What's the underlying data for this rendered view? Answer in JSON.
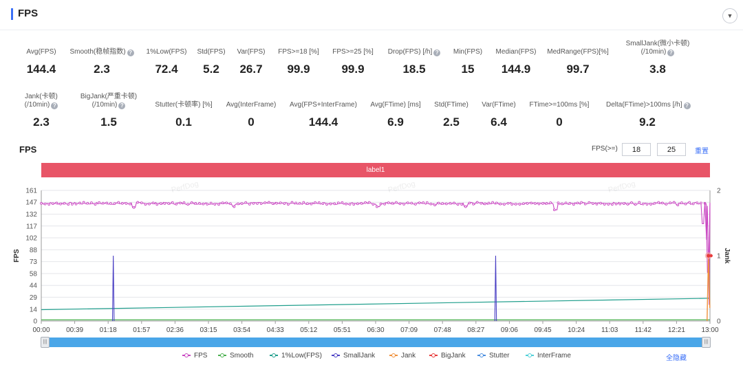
{
  "header": {
    "title": "FPS",
    "collapse_icon": "chevron-down-icon"
  },
  "metrics_row1": [
    {
      "label": "Avg(FPS)",
      "value": "144.4",
      "help": false
    },
    {
      "label": "Smooth(稳帧指数)",
      "value": "2.3",
      "help": true
    },
    {
      "label": "1%Low(FPS)",
      "value": "72.4",
      "help": false
    },
    {
      "label": "Std(FPS)",
      "value": "5.2",
      "help": false
    },
    {
      "label": "Var(FPS)",
      "value": "26.7",
      "help": false
    },
    {
      "label": "FPS>=18 [%]",
      "value": "99.9",
      "help": false
    },
    {
      "label": "FPS>=25 [%]",
      "value": "99.9",
      "help": false
    },
    {
      "label": "Drop(FPS) [/h]",
      "value": "18.5",
      "help": true
    },
    {
      "label": "Min(FPS)",
      "value": "15",
      "help": false
    },
    {
      "label": "Median(FPS)",
      "value": "144.9",
      "help": false
    },
    {
      "label": "MedRange(FPS)[%]",
      "value": "99.7",
      "help": false
    },
    {
      "label": "SmallJank(微小卡顿)",
      "label2": "(/10min)",
      "value": "3.8",
      "help": true
    }
  ],
  "metrics_row2": [
    {
      "label": "Jank(卡顿)",
      "label2": "(/10min)",
      "value": "2.3",
      "help": true
    },
    {
      "label": "BigJank(严重卡顿)",
      "label2": "(/10min)",
      "value": "1.5",
      "help": true
    },
    {
      "label": "Stutter(卡顿率) [%]",
      "value": "0.1",
      "help": false
    },
    {
      "label": "Avg(InterFrame)",
      "value": "0",
      "help": false
    },
    {
      "label": "Avg(FPS+InterFrame)",
      "value": "144.4",
      "help": false
    },
    {
      "label": "Avg(FTime) [ms]",
      "value": "6.9",
      "help": false
    },
    {
      "label": "Std(FTime)",
      "value": "2.5",
      "help": false
    },
    {
      "label": "Var(FTime)",
      "value": "6.4",
      "help": false
    },
    {
      "label": "FTime>=100ms [%]",
      "value": "0",
      "help": false
    },
    {
      "label": "Delta(FTime)>100ms [/h]",
      "value": "9.2",
      "help": true
    }
  ],
  "chart_section": {
    "title": "FPS",
    "threshold_label": "FPS(>=)",
    "threshold_1": "18",
    "threshold_2": "25",
    "reset_label": "重置",
    "label_band": "label1",
    "watermark": "PerfDog",
    "hide_all_label": "全隐藏"
  },
  "chart_data": {
    "type": "line",
    "ylabel": "FPS",
    "y2label": "Jank",
    "yticks": [
      "0",
      "14",
      "29",
      "44",
      "58",
      "73",
      "88",
      "102",
      "117",
      "132",
      "147",
      "161"
    ],
    "y2ticks": [
      "0",
      "1",
      "2"
    ],
    "ylim": [
      0,
      161
    ],
    "y2lim": [
      0,
      2
    ],
    "xticks": [
      "00:00",
      "00:39",
      "01:18",
      "01:57",
      "02:36",
      "03:15",
      "03:54",
      "04:33",
      "05:12",
      "05:51",
      "06:30",
      "07:09",
      "07:48",
      "08:27",
      "09:06",
      "09:45",
      "10:24",
      "11:03",
      "11:42",
      "12:21",
      "13:00"
    ],
    "x_seconds_max": 780,
    "grid": true,
    "legend": "bottom",
    "series": [
      {
        "name": "FPS",
        "color": "#c946c2",
        "baseline": 145,
        "dips": [
          [
            108,
            140
          ],
          [
            224,
            141
          ],
          [
            393,
            141
          ],
          [
            460,
            143
          ],
          [
            495,
            141
          ],
          [
            600,
            137
          ],
          [
            742,
            143
          ],
          [
            772,
            120
          ],
          [
            778,
            60
          ]
        ]
      },
      {
        "name": "Smooth",
        "color": "#4bb04f",
        "value": 0.5
      },
      {
        "name": "1%Low(FPS)",
        "color": "#1f9e8c",
        "from": 14,
        "to": 28
      },
      {
        "name": "SmallJank",
        "color": "#4a3fc4",
        "spikes": [
          [
            84,
            1.0
          ],
          [
            530,
            1.0
          ]
        ],
        "axis": "right"
      },
      {
        "name": "Jank",
        "color": "#f0903a",
        "spikes": [
          [
            779,
            1.0
          ]
        ],
        "axis": "right"
      },
      {
        "name": "BigJank",
        "color": "#e83b3b",
        "spikes": [
          [
            779,
            1.0
          ]
        ],
        "axis": "right"
      },
      {
        "name": "Stutter",
        "color": "#4a8ee0",
        "value": 0
      },
      {
        "name": "InterFrame",
        "color": "#4fd0d8",
        "value": 0
      }
    ]
  }
}
